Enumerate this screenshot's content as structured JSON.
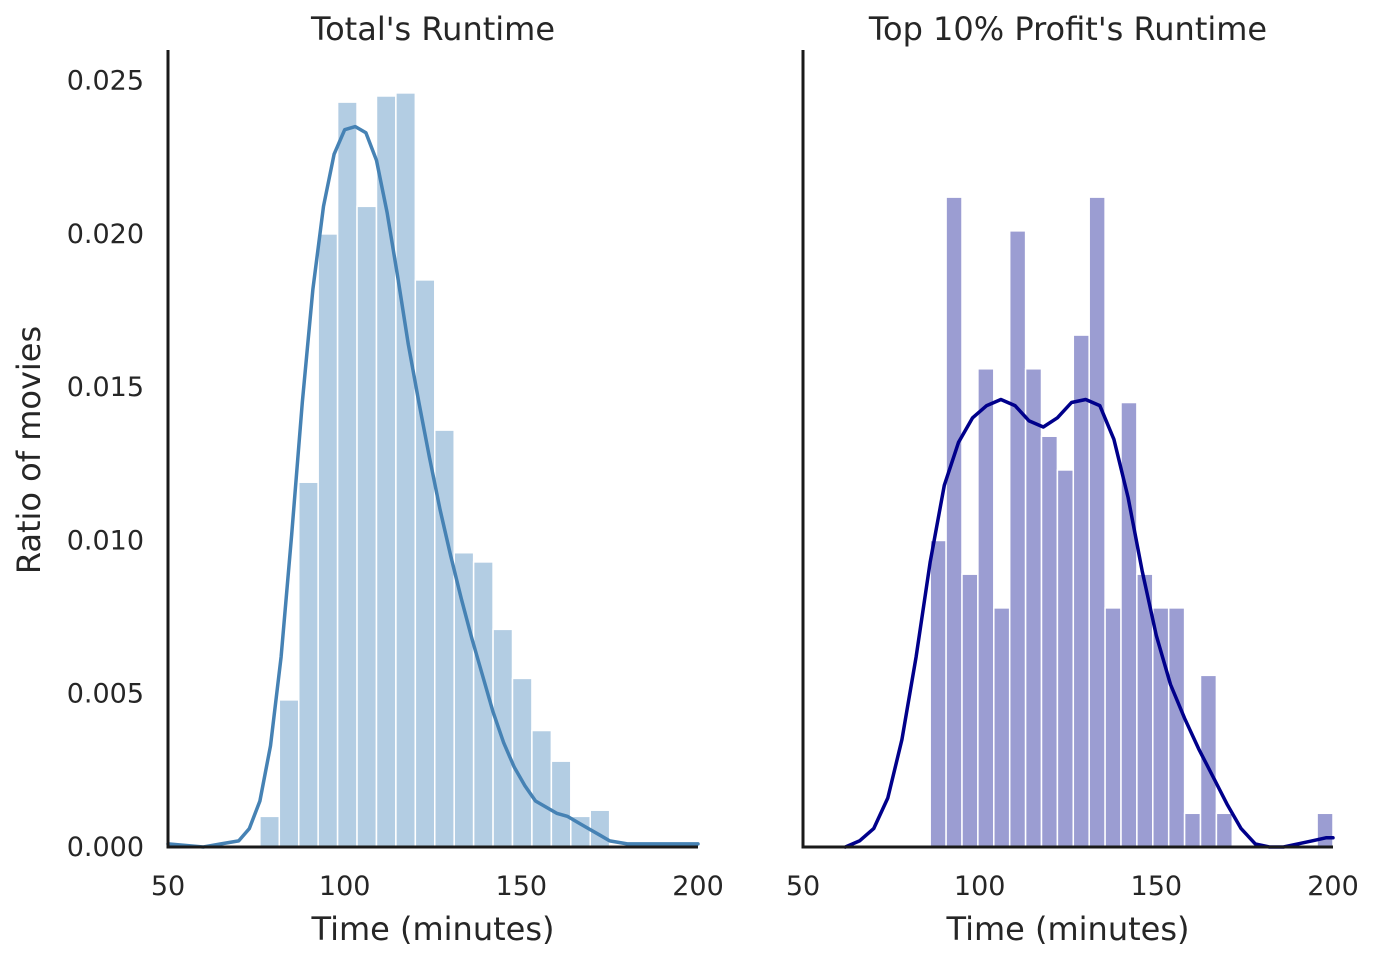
{
  "chart_data": [
    {
      "type": "bar",
      "title": "Total's Runtime",
      "xlabel": "Time (minutes)",
      "ylabel": "Ratio of movies",
      "xlim": [
        50,
        200
      ],
      "ylim": [
        0,
        0.026
      ],
      "xticks": [
        "50",
        "100",
        "150",
        "200"
      ],
      "yticks": [
        "0.000",
        "0.005",
        "0.010",
        "0.015",
        "0.020",
        "0.025"
      ],
      "grid": false,
      "bin_width": 5.5,
      "bar_color": "#b3cde3",
      "kde_color": "#4682b4",
      "bins": [
        {
          "x0": 76.0,
          "x1": 81.5,
          "value": 0.001
        },
        {
          "x0": 81.5,
          "x1": 87.0,
          "value": 0.0048
        },
        {
          "x0": 87.0,
          "x1": 92.5,
          "value": 0.0119
        },
        {
          "x0": 92.5,
          "x1": 98.0,
          "value": 0.02
        },
        {
          "x0": 98.0,
          "x1": 103.5,
          "value": 0.0243
        },
        {
          "x0": 103.5,
          "x1": 109.0,
          "value": 0.0209
        },
        {
          "x0": 109.0,
          "x1": 114.5,
          "value": 0.0245
        },
        {
          "x0": 114.5,
          "x1": 120.0,
          "value": 0.0246
        },
        {
          "x0": 120.0,
          "x1": 125.5,
          "value": 0.0185
        },
        {
          "x0": 125.5,
          "x1": 131.0,
          "value": 0.0136
        },
        {
          "x0": 131.0,
          "x1": 136.5,
          "value": 0.0096
        },
        {
          "x0": 136.5,
          "x1": 142.0,
          "value": 0.0093
        },
        {
          "x0": 142.0,
          "x1": 147.5,
          "value": 0.0071
        },
        {
          "x0": 147.5,
          "x1": 153.0,
          "value": 0.0055
        },
        {
          "x0": 153.0,
          "x1": 158.5,
          "value": 0.0038
        },
        {
          "x0": 158.5,
          "x1": 164.0,
          "value": 0.0028
        },
        {
          "x0": 164.0,
          "x1": 169.5,
          "value": 0.001
        },
        {
          "x0": 169.5,
          "x1": 175.0,
          "value": 0.0012
        }
      ],
      "kde": {
        "x": [
          50,
          60,
          65,
          70,
          73,
          76,
          79,
          82,
          85,
          88,
          91,
          94,
          97,
          100,
          103,
          106,
          109,
          112,
          115,
          118,
          121,
          124,
          127,
          130,
          133,
          136,
          139,
          142,
          145,
          148,
          151,
          154,
          157,
          160,
          163,
          166,
          169,
          172,
          175,
          180,
          185,
          190,
          200
        ],
        "y": [
          0.0001,
          0.0,
          0.0001,
          0.0002,
          0.0006,
          0.0015,
          0.0033,
          0.0062,
          0.0102,
          0.0145,
          0.0182,
          0.0209,
          0.0226,
          0.0234,
          0.0235,
          0.0233,
          0.0224,
          0.0207,
          0.0186,
          0.0164,
          0.0145,
          0.0127,
          0.011,
          0.0095,
          0.0081,
          0.0068,
          0.0056,
          0.0044,
          0.0034,
          0.0026,
          0.002,
          0.0015,
          0.0013,
          0.0011,
          0.001,
          0.0008,
          0.0006,
          0.0004,
          0.0002,
          0.0001,
          0.0001,
          0.0001,
          0.0001
        ]
      }
    },
    {
      "type": "bar",
      "title": "Top 10% Profit's Runtime",
      "xlabel": "Time (minutes)",
      "ylabel": "",
      "xlim": [
        50,
        200
      ],
      "ylim": [
        0,
        0.026
      ],
      "xticks": [
        "50",
        "100",
        "150",
        "200"
      ],
      "yticks": [],
      "grid": false,
      "bin_width": 4.5,
      "bar_color": "#9b9dd2",
      "kde_color": "#00008b",
      "bins": [
        {
          "x0": 86.0,
          "x1": 90.5,
          "value": 0.01
        },
        {
          "x0": 90.5,
          "x1": 95.0,
          "value": 0.0212
        },
        {
          "x0": 95.0,
          "x1": 99.5,
          "value": 0.0089
        },
        {
          "x0": 99.5,
          "x1": 104.0,
          "value": 0.0156
        },
        {
          "x0": 104.0,
          "x1": 108.5,
          "value": 0.0078
        },
        {
          "x0": 108.5,
          "x1": 113.0,
          "value": 0.0201
        },
        {
          "x0": 113.0,
          "x1": 117.5,
          "value": 0.0156
        },
        {
          "x0": 117.5,
          "x1": 122.0,
          "value": 0.0134
        },
        {
          "x0": 122.0,
          "x1": 126.5,
          "value": 0.0123
        },
        {
          "x0": 126.5,
          "x1": 131.0,
          "value": 0.0167
        },
        {
          "x0": 131.0,
          "x1": 135.5,
          "value": 0.0212
        },
        {
          "x0": 135.5,
          "x1": 140.0,
          "value": 0.0078
        },
        {
          "x0": 140.0,
          "x1": 144.5,
          "value": 0.0145
        },
        {
          "x0": 144.5,
          "x1": 149.0,
          "value": 0.0089
        },
        {
          "x0": 149.0,
          "x1": 153.5,
          "value": 0.0078
        },
        {
          "x0": 153.5,
          "x1": 158.0,
          "value": 0.0078
        },
        {
          "x0": 158.0,
          "x1": 162.5,
          "value": 0.0011
        },
        {
          "x0": 162.5,
          "x1": 167.0,
          "value": 0.0056
        },
        {
          "x0": 167.0,
          "x1": 171.5,
          "value": 0.0011
        },
        {
          "x0": 195.5,
          "x1": 200.0,
          "value": 0.0011
        }
      ],
      "kde": {
        "x": [
          62,
          66,
          70,
          74,
          78,
          82,
          86,
          90,
          94,
          98,
          102,
          106,
          110,
          114,
          118,
          122,
          126,
          130,
          134,
          138,
          142,
          146,
          150,
          154,
          158,
          162,
          166,
          170,
          174,
          178,
          182,
          186,
          190,
          194,
          198,
          200
        ],
        "y": [
          0.0,
          0.0002,
          0.0006,
          0.0016,
          0.0035,
          0.0062,
          0.0093,
          0.0118,
          0.0132,
          0.014,
          0.0144,
          0.0146,
          0.0144,
          0.0139,
          0.0137,
          0.014,
          0.0145,
          0.0146,
          0.0144,
          0.0133,
          0.0114,
          0.009,
          0.0069,
          0.0053,
          0.0042,
          0.0032,
          0.0023,
          0.0014,
          0.0006,
          0.0001,
          0.0,
          0.0,
          0.0001,
          0.0002,
          0.0003,
          0.0003
        ]
      }
    }
  ]
}
